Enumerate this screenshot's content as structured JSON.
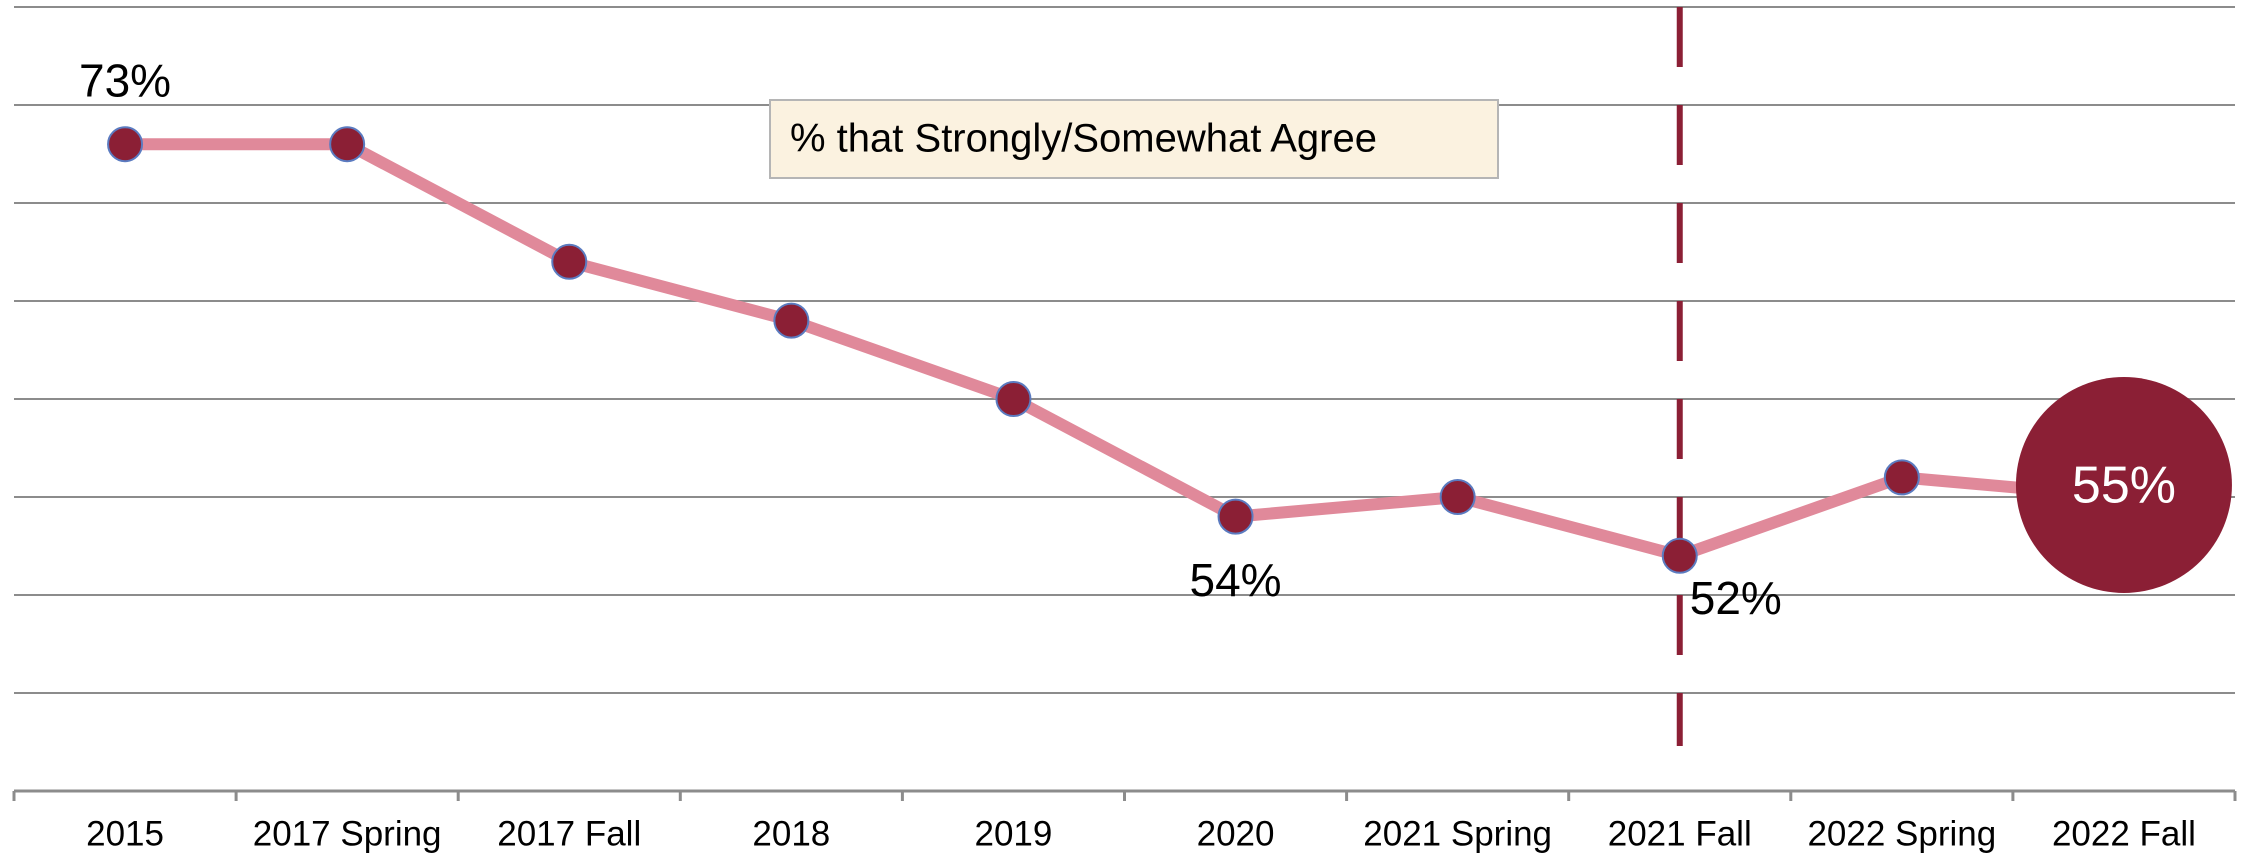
{
  "chart_data": {
    "type": "line",
    "categories": [
      "2015",
      "2017 Spring",
      "2017 Fall",
      "2018",
      "2019",
      "2020",
      "2021 Spring",
      "2021 Fall",
      "2022 Spring",
      "2022 Fall"
    ],
    "series": [
      {
        "name": "% that Strongly/Somewhat Agree",
        "color": "#e0899a",
        "marker_color": "#8b1f35",
        "values": [
          73,
          73,
          67,
          64,
          60,
          54,
          55,
          52,
          56,
          55
        ],
        "value_labels": [
          "73%",
          null,
          null,
          null,
          null,
          "54%",
          null,
          "52%",
          null,
          "55%"
        ]
      }
    ],
    "ylim": [
      40,
      80
    ],
    "yticks": [
      40,
      45,
      50,
      55,
      60,
      65,
      70,
      75,
      80
    ],
    "grid": true,
    "vline": "2021 Fall",
    "vline_color": "#8b1f35"
  }
}
